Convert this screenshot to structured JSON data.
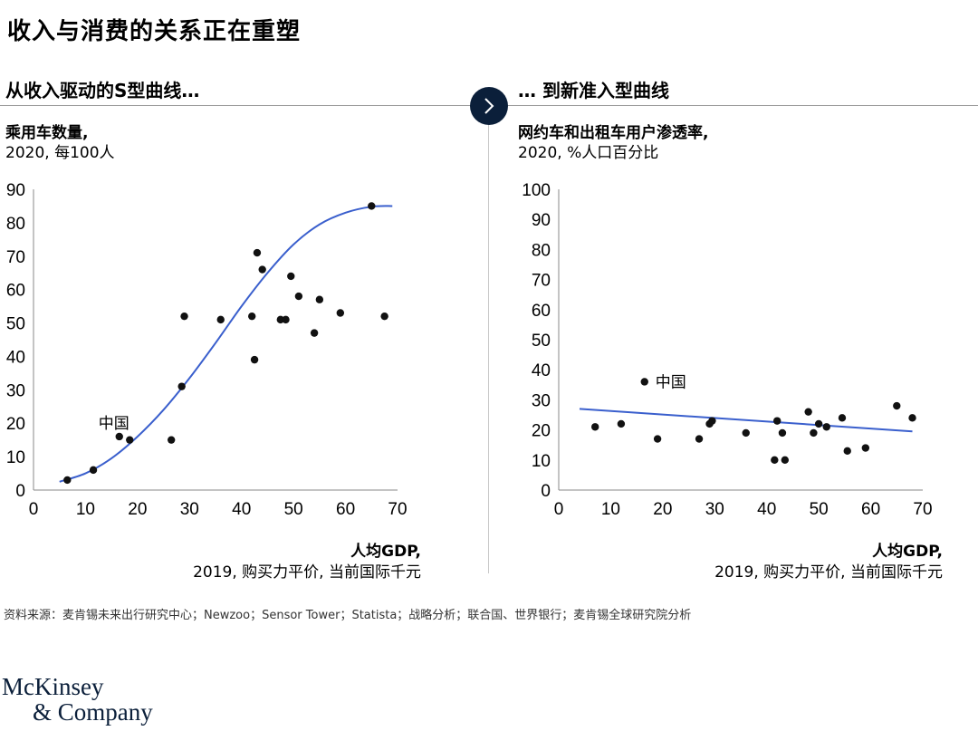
{
  "title": "收入与消费的关系正在重塑",
  "left_section_title": "从收入驱动的S型曲线…",
  "right_section_title": "… 到新准入型曲线",
  "left_chart_subtitle_bold": "乘用车数量,",
  "left_chart_subtitle": "2020, 每100人",
  "right_chart_subtitle_bold": "网约车和出租车用户渗透率,",
  "right_chart_subtitle": "2020, %人口百分比",
  "x_axis_label_bold": "人均GDP,",
  "x_axis_label": "2019, 购买力平价, 当前国际千元",
  "source": "资料来源：麦肯锡未来出行研究中心；Newzoo；Sensor Tower；Statista；战略分析；联合国、世界银行；麦肯锡全球研究院分析",
  "logo": {
    "line1": "McKinsey",
    "line2": "& Company"
  },
  "colors": {
    "curve": "#3a5fcd",
    "point": "#111111",
    "nav_button": "#0b1f3a"
  },
  "nav_icon": "chevron-right-icon",
  "chart_data": [
    {
      "type": "scatter",
      "xlim": [
        0,
        70
      ],
      "ylim": [
        0,
        90
      ],
      "xticks": [
        0,
        10,
        20,
        30,
        40,
        50,
        60,
        70
      ],
      "yticks": [
        0,
        10,
        20,
        30,
        40,
        50,
        60,
        70,
        80,
        90
      ],
      "points": [
        {
          "x": 6.5,
          "y": 3
        },
        {
          "x": 11.5,
          "y": 6
        },
        {
          "x": 16.5,
          "y": 16,
          "label": "中国"
        },
        {
          "x": 18.5,
          "y": 15
        },
        {
          "x": 26.5,
          "y": 15
        },
        {
          "x": 28.5,
          "y": 31
        },
        {
          "x": 29,
          "y": 52
        },
        {
          "x": 36,
          "y": 51
        },
        {
          "x": 42,
          "y": 52
        },
        {
          "x": 42.5,
          "y": 39
        },
        {
          "x": 43,
          "y": 71
        },
        {
          "x": 44,
          "y": 66
        },
        {
          "x": 47.5,
          "y": 51
        },
        {
          "x": 48.5,
          "y": 51
        },
        {
          "x": 49.5,
          "y": 64
        },
        {
          "x": 51,
          "y": 58
        },
        {
          "x": 54,
          "y": 47
        },
        {
          "x": 55,
          "y": 57
        },
        {
          "x": 59,
          "y": 53
        },
        {
          "x": 65,
          "y": 85
        },
        {
          "x": 67.5,
          "y": 52
        }
      ],
      "trend": {
        "kind": "logistic",
        "x_range": [
          5,
          69
        ],
        "points": [
          [
            5,
            2.5
          ],
          [
            10,
            5
          ],
          [
            15,
            9.5
          ],
          [
            20,
            16
          ],
          [
            25,
            24
          ],
          [
            30,
            33.5
          ],
          [
            35,
            44
          ],
          [
            40,
            55
          ],
          [
            45,
            65
          ],
          [
            50,
            73.5
          ],
          [
            55,
            79.5
          ],
          [
            60,
            83
          ],
          [
            65,
            84.8
          ],
          [
            69,
            85
          ]
        ]
      }
    },
    {
      "type": "scatter",
      "xlim": [
        0,
        70
      ],
      "ylim": [
        0,
        100
      ],
      "xticks": [
        0,
        10,
        20,
        30,
        40,
        50,
        60,
        70
      ],
      "yticks": [
        0,
        10,
        20,
        30,
        40,
        50,
        60,
        70,
        80,
        90,
        100
      ],
      "points": [
        {
          "x": 7,
          "y": 21
        },
        {
          "x": 12,
          "y": 22
        },
        {
          "x": 16.5,
          "y": 36,
          "label": "中国"
        },
        {
          "x": 19,
          "y": 17
        },
        {
          "x": 27,
          "y": 17
        },
        {
          "x": 29,
          "y": 22
        },
        {
          "x": 29.5,
          "y": 23
        },
        {
          "x": 36,
          "y": 19
        },
        {
          "x": 41.5,
          "y": 10
        },
        {
          "x": 42,
          "y": 23
        },
        {
          "x": 43,
          "y": 19
        },
        {
          "x": 43.5,
          "y": 10
        },
        {
          "x": 48,
          "y": 26
        },
        {
          "x": 49,
          "y": 19
        },
        {
          "x": 50,
          "y": 22
        },
        {
          "x": 51.5,
          "y": 21
        },
        {
          "x": 54.5,
          "y": 24
        },
        {
          "x": 55.5,
          "y": 13
        },
        {
          "x": 59,
          "y": 14
        },
        {
          "x": 65,
          "y": 28
        },
        {
          "x": 68,
          "y": 24
        }
      ],
      "trend": {
        "kind": "linear",
        "points": [
          [
            4,
            27
          ],
          [
            68,
            19.5
          ]
        ]
      }
    }
  ]
}
